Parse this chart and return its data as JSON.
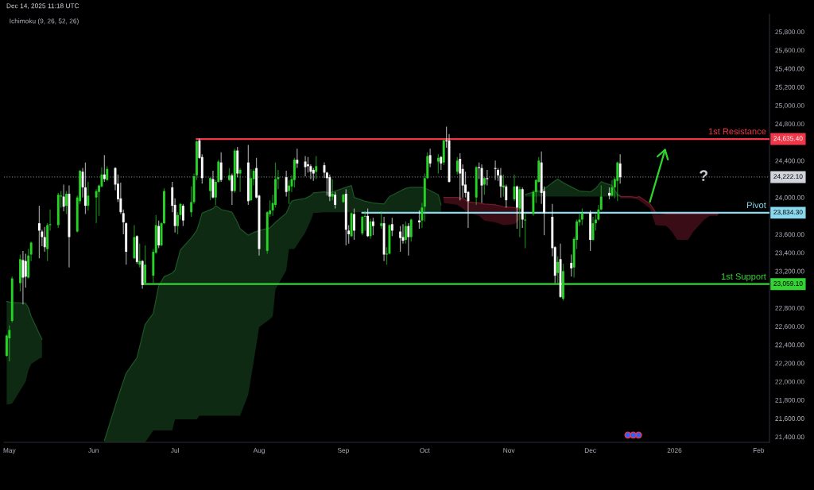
{
  "chart_data": {
    "type": "candlestick",
    "title": "Dec 14, 2025 11:18 UTC",
    "subtitle": "Ichimoku (9, 26, 52, 26)",
    "x": [
      "2025-04-30",
      "2025-05-01",
      "2025-05-02",
      "2025-05-05",
      "2025-05-06",
      "2025-05-07",
      "2025-05-08",
      "2025-05-09",
      "2025-05-12",
      "2025-05-13",
      "2025-05-14",
      "2025-05-15",
      "2025-05-16",
      "2025-05-19",
      "2025-05-20",
      "2025-05-21",
      "2025-05-22",
      "2025-05-23",
      "2025-05-26",
      "2025-05-27",
      "2025-05-28",
      "2025-05-29",
      "2025-05-30",
      "2025-06-02",
      "2025-06-03",
      "2025-06-04",
      "2025-06-05",
      "2025-06-06",
      "2025-06-09",
      "2025-06-10",
      "2025-06-11",
      "2025-06-12",
      "2025-06-13",
      "2025-06-16",
      "2025-06-17",
      "2025-06-18",
      "2025-06-19",
      "2025-06-20",
      "2025-06-23",
      "2025-06-24",
      "2025-06-25",
      "2025-06-26",
      "2025-06-27",
      "2025-06-30",
      "2025-07-01",
      "2025-07-02",
      "2025-07-03",
      "2025-07-04",
      "2025-07-07",
      "2025-07-08",
      "2025-07-09",
      "2025-07-10",
      "2025-07-11",
      "2025-07-14",
      "2025-07-15",
      "2025-07-16",
      "2025-07-17",
      "2025-07-18",
      "2025-07-21",
      "2025-07-22",
      "2025-07-23",
      "2025-07-24",
      "2025-07-25",
      "2025-07-28",
      "2025-07-29",
      "2025-07-30",
      "2025-07-31",
      "2025-08-01",
      "2025-08-04",
      "2025-08-05",
      "2025-08-06",
      "2025-08-07",
      "2025-08-08",
      "2025-08-11",
      "2025-08-12",
      "2025-08-13",
      "2025-08-14",
      "2025-08-15",
      "2025-08-18",
      "2025-08-19",
      "2025-08-20",
      "2025-08-21",
      "2025-08-22",
      "2025-08-25",
      "2025-08-26",
      "2025-08-27",
      "2025-08-28",
      "2025-08-29",
      "2025-09-01",
      "2025-09-02",
      "2025-09-03",
      "2025-09-04",
      "2025-09-05",
      "2025-09-08",
      "2025-09-09",
      "2025-09-10",
      "2025-09-11",
      "2025-09-12",
      "2025-09-15",
      "2025-09-16",
      "2025-09-17",
      "2025-09-18",
      "2025-09-19",
      "2025-09-22",
      "2025-09-23",
      "2025-09-24",
      "2025-09-25",
      "2025-09-26",
      "2025-09-29",
      "2025-09-30",
      "2025-10-01",
      "2025-10-02",
      "2025-10-03",
      "2025-10-06",
      "2025-10-07",
      "2025-10-08",
      "2025-10-09",
      "2025-10-10",
      "2025-10-13",
      "2025-10-14",
      "2025-10-15",
      "2025-10-16",
      "2025-10-17",
      "2025-10-20",
      "2025-10-21",
      "2025-10-22",
      "2025-10-23",
      "2025-10-24",
      "2025-10-27",
      "2025-10-28",
      "2025-10-29",
      "2025-10-30",
      "2025-10-31",
      "2025-11-03",
      "2025-11-04",
      "2025-11-05",
      "2025-11-06",
      "2025-11-07",
      "2025-11-10",
      "2025-11-11",
      "2025-11-12",
      "2025-11-13",
      "2025-11-14",
      "2025-11-17",
      "2025-11-18",
      "2025-11-19",
      "2025-11-20",
      "2025-11-21",
      "2025-11-24",
      "2025-11-25",
      "2025-11-26",
      "2025-11-27",
      "2025-11-28",
      "2025-12-01",
      "2025-12-02",
      "2025-12-03",
      "2025-12-04",
      "2025-12-05",
      "2025-12-08",
      "2025-12-09",
      "2025-12-10",
      "2025-12-11",
      "2025-12-12"
    ],
    "ohlc": [
      [
        22280,
        22510,
        22270,
        22500
      ],
      [
        22470,
        22610,
        22220,
        22560
      ],
      [
        22660,
        23140,
        22640,
        23120
      ],
      [
        23070,
        23380,
        22980,
        23330
      ],
      [
        23320,
        23420,
        22840,
        23130
      ],
      [
        23310,
        23390,
        23020,
        23140
      ],
      [
        23130,
        23440,
        23120,
        23370
      ],
      [
        23380,
        23520,
        23310,
        23510
      ],
      [
        23720,
        23910,
        23340,
        23640
      ],
      [
        23630,
        23650,
        23470,
        23570
      ],
      [
        23570,
        23680,
        23410,
        23460
      ],
      [
        23440,
        23720,
        23310,
        23700
      ],
      [
        23700,
        23870,
        23640,
        23710
      ],
      [
        23700,
        24050,
        23670,
        24030
      ],
      [
        24010,
        24070,
        23890,
        24020
      ],
      [
        24010,
        24140,
        23850,
        23900
      ],
      [
        23910,
        24070,
        23820,
        24040
      ],
      [
        24040,
        24130,
        23240,
        23570
      ],
      [
        23630,
        24020,
        23620,
        24000
      ],
      [
        23960,
        24300,
        23930,
        24290
      ],
      [
        24280,
        24320,
        24000,
        24110
      ],
      [
        24110,
        24380,
        23820,
        23910
      ],
      [
        23910,
        24170,
        23860,
        24020
      ],
      [
        24000,
        24090,
        23720,
        24070
      ],
      [
        24060,
        24140,
        23800,
        24130
      ],
      [
        24120,
        24330,
        24110,
        24250
      ],
      [
        24250,
        24460,
        24170,
        24200
      ],
      [
        24190,
        24340,
        24180,
        24310
      ],
      [
        24320,
        24330,
        24080,
        24140
      ],
      [
        24150,
        24250,
        23950,
        23980
      ],
      [
        23990,
        24160,
        23820,
        23840
      ],
      [
        23830,
        23870,
        23600,
        23730
      ],
      [
        23720,
        23730,
        23270,
        23410
      ],
      [
        23340,
        23700,
        23330,
        23570
      ],
      [
        23580,
        23590,
        23280,
        23300
      ],
      [
        23270,
        23500,
        23240,
        23310
      ],
      [
        23310,
        23320,
        23010,
        23050
      ],
      [
        23070,
        23480,
        23060,
        23270
      ],
      [
        23150,
        23440,
        23070,
        23410
      ],
      [
        23400,
        23810,
        23390,
        23700
      ],
      [
        23690,
        23750,
        23450,
        23480
      ],
      [
        23480,
        23730,
        23470,
        23720
      ],
      [
        23720,
        24100,
        23710,
        24070
      ],
      [
        24110,
        24170,
        23840,
        23910
      ],
      [
        23920,
        23990,
        23620,
        23690
      ],
      [
        23690,
        23840,
        23600,
        23810
      ],
      [
        23810,
        23940,
        23760,
        23930
      ],
      [
        23910,
        23930,
        23690,
        23750
      ],
      [
        23840,
        24120,
        23790,
        23950
      ],
      [
        23950,
        24260,
        23930,
        24230
      ],
      [
        24240,
        24620,
        24190,
        24610
      ],
      [
        24620,
        24640,
        24420,
        24430
      ],
      [
        24440,
        24470,
        24150,
        24210
      ],
      [
        24070,
        24220,
        23970,
        24210
      ],
      [
        24200,
        24290,
        23990,
        24000
      ],
      [
        24000,
        24190,
        23920,
        24170
      ],
      [
        24170,
        24410,
        24160,
        24390
      ],
      [
        24380,
        24490,
        24170,
        24190
      ],
      [
        24190,
        24320,
        24180,
        24240
      ],
      [
        24240,
        24260,
        23920,
        24070
      ],
      [
        24070,
        24530,
        24050,
        24510
      ],
      [
        24510,
        24550,
        24220,
        24260
      ],
      [
        24260,
        24320,
        24060,
        24300
      ],
      [
        24380,
        24570,
        23920,
        23960
      ],
      [
        23970,
        24310,
        23960,
        24210
      ],
      [
        24200,
        24310,
        24130,
        24290
      ],
      [
        24320,
        24430,
        23990,
        24000
      ],
      [
        24020,
        24030,
        23370,
        23440
      ],
      [
        23420,
        23850,
        23390,
        23840
      ],
      [
        23820,
        23970,
        23790,
        23860
      ],
      [
        23860,
        24030,
        23800,
        23940
      ],
      [
        23920,
        24380,
        23890,
        24200
      ],
      [
        24200,
        24300,
        24090,
        24220
      ],
      [
        24220,
        24290,
        24010,
        24060
      ],
      [
        24070,
        24190,
        23930,
        24130
      ],
      [
        24120,
        24240,
        24060,
        24200
      ],
      [
        24190,
        24430,
        24110,
        24410
      ],
      [
        24410,
        24530,
        24320,
        24370
      ],
      [
        24390,
        24450,
        24230,
        24330
      ],
      [
        24360,
        24440,
        24270,
        24340
      ],
      [
        24340,
        24360,
        24200,
        24280
      ],
      [
        24300,
        24320,
        24180,
        24260
      ],
      [
        24280,
        24450,
        24200,
        24340
      ],
      [
        24350,
        24380,
        24210,
        24270
      ],
      [
        24270,
        24280,
        24020,
        24210
      ],
      [
        24220,
        24250,
        23960,
        24010
      ],
      [
        24010,
        24200,
        23970,
        24040
      ],
      [
        24030,
        24060,
        23880,
        23920
      ],
      [
        23950,
        24040,
        23940,
        24030
      ],
      [
        24040,
        24090,
        23480,
        23650
      ],
      [
        23640,
        23700,
        23500,
        23600
      ],
      [
        23580,
        23840,
        23570,
        23830
      ],
      [
        23820,
        23880,
        23540,
        23640
      ],
      [
        23610,
        23800,
        23590,
        23790
      ],
      [
        23790,
        23850,
        23640,
        23800
      ],
      [
        23800,
        23880,
        23570,
        23580
      ],
      [
        23580,
        23770,
        23550,
        23740
      ],
      [
        23740,
        23780,
        23590,
        23690
      ],
      [
        23690,
        23850,
        23660,
        23720
      ],
      [
        23720,
        23790,
        23310,
        23380
      ],
      [
        23380,
        23460,
        23270,
        23390
      ],
      [
        23390,
        23710,
        23380,
        23700
      ],
      [
        23710,
        23780,
        23580,
        23640
      ],
      [
        23630,
        23690,
        23410,
        23560
      ],
      [
        23570,
        23710,
        23500,
        23530
      ],
      [
        23540,
        23740,
        23500,
        23690
      ],
      [
        23690,
        23720,
        23370,
        23570
      ],
      [
        23570,
        23770,
        23520,
        23760
      ],
      [
        23750,
        23860,
        23660,
        23730
      ],
      [
        23750,
        23940,
        23670,
        23890
      ],
      [
        23900,
        24260,
        23740,
        24210
      ],
      [
        24210,
        24490,
        24200,
        24450
      ],
      [
        24460,
        24530,
        24330,
        24370
      ],
      [
        24390,
        24470,
        24260,
        24430
      ],
      [
        24440,
        24450,
        24300,
        24370
      ],
      [
        24380,
        24630,
        24350,
        24620
      ],
      [
        24620,
        24770,
        24540,
        24610
      ],
      [
        24620,
        24690,
        24160,
        24170
      ],
      [
        24280,
        24440,
        24250,
        24400
      ],
      [
        24420,
        24480,
        23970,
        24260
      ],
      [
        24310,
        24360,
        24000,
        24130
      ],
      [
        24140,
        24280,
        24000,
        24050
      ],
      [
        24060,
        24070,
        23670,
        23960
      ],
      [
        24000,
        24340,
        23920,
        24330
      ],
      [
        24330,
        24380,
        24200,
        24320
      ],
      [
        24320,
        24360,
        23940,
        24130
      ],
      [
        24140,
        24220,
        24030,
        24210
      ],
      [
        24210,
        24300,
        24130,
        24200
      ],
      [
        24320,
        24400,
        24190,
        24310
      ],
      [
        24300,
        24320,
        24180,
        24240
      ],
      [
        24240,
        24320,
        24000,
        24120
      ],
      [
        24110,
        24250,
        24010,
        24130
      ],
      [
        24120,
        24140,
        23890,
        23970
      ],
      [
        23980,
        24250,
        23960,
        24120
      ],
      [
        24120,
        24130,
        23660,
        23890
      ],
      [
        23880,
        24120,
        23570,
        24090
      ],
      [
        24090,
        24110,
        23670,
        23760
      ],
      [
        23750,
        23830,
        23450,
        23760
      ],
      [
        23820,
        24080,
        23800,
        24060
      ],
      [
        24060,
        24200,
        23940,
        24190
      ],
      [
        24170,
        24440,
        24160,
        24400
      ],
      [
        24380,
        24500,
        23930,
        24050
      ],
      [
        24070,
        24120,
        23590,
        23830
      ],
      [
        23790,
        23930,
        23360,
        23450
      ],
      [
        23460,
        23470,
        23070,
        23150
      ],
      [
        23180,
        23360,
        23060,
        23300
      ],
      [
        23330,
        23500,
        22910,
        22920
      ],
      [
        22900,
        23280,
        22880,
        23200
      ],
      [
        23290,
        23380,
        23140,
        23230
      ],
      [
        23240,
        23570,
        23130,
        23550
      ],
      [
        23540,
        23760,
        23440,
        23740
      ],
      [
        23730,
        23830,
        23690,
        23760
      ],
      [
        23760,
        23880,
        23700,
        23830
      ],
      [
        23830,
        23860,
        23420,
        23540
      ],
      [
        23540,
        23790,
        23530,
        23720
      ],
      [
        23720,
        23820,
        23640,
        23760
      ],
      [
        23760,
        23920,
        23750,
        23870
      ],
      [
        23870,
        24130,
        23860,
        24010
      ],
      [
        24050,
        24110,
        23980,
        24020
      ],
      [
        24020,
        24190,
        24010,
        24110
      ],
      [
        24110,
        24220,
        23990,
        24200
      ],
      [
        24180,
        24390,
        23960,
        24380
      ],
      [
        24370,
        24470,
        24150,
        24220
      ]
    ],
    "colors": [
      "#26d426",
      "#26d426",
      "#26d426",
      "#26d426",
      "#ffffff",
      "#ffffff",
      "#26d426",
      "#26d426",
      "#ffffff",
      "#ffffff",
      "#ffffff",
      "#26d426",
      "#26d426",
      "#26d426",
      "#26d426",
      "#ffffff",
      "#26d426",
      "#ffffff",
      "#26d426",
      "#26d426",
      "#ffffff",
      "#ffffff",
      "#26d426",
      "#26d426",
      "#26d426",
      "#26d426",
      "#ffffff",
      "#26d426",
      "#ffffff",
      "#ffffff",
      "#ffffff",
      "#ffffff",
      "#ffffff",
      "#26d426",
      "#ffffff",
      "#26d426",
      "#ffffff",
      "#26d426",
      "#26d426",
      "#26d426",
      "#ffffff",
      "#26d426",
      "#26d426",
      "#ffffff",
      "#ffffff",
      "#26d426",
      "#26d426",
      "#ffffff",
      "#26d426",
      "#26d426",
      "#26d426",
      "#ffffff",
      "#ffffff",
      "#26d426",
      "#ffffff",
      "#26d426",
      "#26d426",
      "#ffffff",
      "#26d426",
      "#ffffff",
      "#26d426",
      "#ffffff",
      "#26d426",
      "#ffffff",
      "#26d426",
      "#26d426",
      "#ffffff",
      "#ffffff",
      "#26d426",
      "#26d426",
      "#26d426",
      "#26d426",
      "#26d426",
      "#ffffff",
      "#26d426",
      "#26d426",
      "#26d426",
      "#ffffff",
      "#ffffff",
      "#ffffff",
      "#ffffff",
      "#ffffff",
      "#26d426",
      "#ffffff",
      "#ffffff",
      "#ffffff",
      "#26d426",
      "#ffffff",
      "#26d426",
      "#ffffff",
      "#ffffff",
      "#26d426",
      "#ffffff",
      "#26d426",
      "#26d426",
      "#ffffff",
      "#26d426",
      "#ffffff",
      "#26d426",
      "#ffffff",
      "#26d426",
      "#26d426",
      "#ffffff",
      "#ffffff",
      "#ffffff",
      "#26d426",
      "#ffffff",
      "#26d426",
      "#ffffff",
      "#26d426",
      "#26d426",
      "#26d426",
      "#ffffff",
      "#26d426",
      "#ffffff",
      "#26d426",
      "#ffffff",
      "#ffffff",
      "#26d426",
      "#ffffff",
      "#ffffff",
      "#ffffff",
      "#ffffff",
      "#26d426",
      "#ffffff",
      "#ffffff",
      "#26d426",
      "#ffffff",
      "#ffffff",
      "#ffffff",
      "#ffffff",
      "#26d426",
      "#ffffff",
      "#26d426",
      "#ffffff",
      "#26d426",
      "#ffffff",
      "#26d426",
      "#26d426",
      "#26d426",
      "#26d426",
      "#ffffff",
      "#ffffff",
      "#ffffff",
      "#ffffff",
      "#26d426",
      "#ffffff",
      "#26d426",
      "#ffffff",
      "#26d426",
      "#26d426",
      "#26d426",
      "#26d426",
      "#ffffff",
      "#26d426",
      "#26d426",
      "#26d426",
      "#26d426",
      "#ffffff",
      "#26d426",
      "#26d426",
      "#26d426",
      "#ffffff"
    ],
    "series": [
      {
        "type": "line",
        "color": "#1c5424",
        "x": [
          "2025-04-30",
          "2025-05-02",
          "2025-05-07",
          "2025-05-08",
          "2025-05-09",
          "2025-05-12",
          "2025-05-13"
        ],
        "values": [
          22870,
          22860,
          22850,
          22800,
          22710,
          22520,
          22460
        ],
        "upper": [
          22870,
          22860,
          22850,
          22800,
          22710,
          22520,
          22460
        ],
        "lower": [
          21750,
          21760,
          22000,
          22120,
          22190,
          22250,
          22260
        ]
      },
      {
        "type": "line",
        "color": "#1c5424",
        "x": [
          "2025-06-05",
          "2025-06-10",
          "2025-06-13",
          "2025-06-17",
          "2025-06-19",
          "2025-06-20",
          "2025-06-23",
          "2025-06-25",
          "2025-06-27",
          "2025-06-30",
          "2025-07-01",
          "2025-07-02",
          "2025-07-03",
          "2025-07-07",
          "2025-07-09",
          "2025-07-10",
          "2025-07-11",
          "2025-07-15",
          "2025-07-16",
          "2025-07-18",
          "2025-07-22",
          "2025-07-24",
          "2025-07-25",
          "2025-07-28",
          "2025-07-30",
          "2025-08-01",
          "2025-08-05",
          "2025-08-06",
          "2025-08-07",
          "2025-08-11",
          "2025-08-12",
          "2025-08-13",
          "2025-08-14",
          "2025-08-18",
          "2025-08-20",
          "2025-08-21",
          "2025-08-25",
          "2025-08-27",
          "2025-08-29",
          "2025-09-02",
          "2025-09-04",
          "2025-09-05",
          "2025-09-09",
          "2025-09-12",
          "2025-09-16",
          "2025-09-18",
          "2025-09-22",
          "2025-09-24",
          "2025-09-26",
          "2025-09-30",
          "2025-10-02",
          "2025-10-06",
          "2025-10-07"
        ],
        "values": [
          21360,
          21830,
          22090,
          22260,
          22500,
          22620,
          22740,
          23040,
          23140,
          23180,
          23210,
          23320,
          23430,
          23560,
          23640,
          23730,
          23830,
          23880,
          23910,
          23870,
          23840,
          23730,
          23660,
          23590,
          23620,
          23640,
          23670,
          23700,
          23730,
          23830,
          23900,
          23960,
          23970,
          23990,
          24020,
          24050,
          24060,
          24050,
          24070,
          24110,
          24130,
          24000,
          23960,
          23940,
          23930,
          24010,
          24070,
          24100,
          24110,
          24110,
          24090,
          24030,
          23920
        ],
        "upper": [
          21360,
          21830,
          22090,
          22260,
          22500,
          22620,
          22740,
          23040,
          23140,
          23180,
          23210,
          23320,
          23430,
          23560,
          23640,
          23730,
          23830,
          23880,
          23910,
          23870,
          23840,
          23730,
          23660,
          23590,
          23620,
          23640,
          23670,
          23700,
          23730,
          23830,
          23900,
          23960,
          23970,
          23990,
          24020,
          24050,
          24060,
          24050,
          24070,
          24110,
          24130,
          24000,
          23960,
          23940,
          23930,
          24010,
          24070,
          24100,
          24110,
          24110,
          24090,
          24030,
          23920
        ],
        "lower": [
          21340,
          21340,
          21340,
          21340,
          21340,
          21340,
          21470,
          21470,
          21470,
          21470,
          21590,
          21590,
          21590,
          21590,
          21590,
          21630,
          21630,
          21630,
          21630,
          21630,
          21630,
          21630,
          21630,
          21860,
          22220,
          22590,
          22680,
          22710,
          23000,
          23210,
          23440,
          23440,
          23440,
          23620,
          23750,
          23830,
          23840,
          23840,
          23840,
          23840,
          23840,
          23840,
          23840,
          23840,
          23840,
          23840,
          23840,
          23840,
          23840,
          23840,
          23840,
          23840,
          23840
        ]
      },
      {
        "type": "line",
        "color": "#74182a",
        "x": [
          "2025-10-08",
          "2025-10-13",
          "2025-10-15",
          "2025-10-17",
          "2025-10-21",
          "2025-10-23",
          "2025-10-27",
          "2025-10-30",
          "2025-11-03",
          "2025-11-05"
        ],
        "values": [
          24000,
          24000,
          23990,
          23950,
          23940,
          23930,
          23920,
          23900,
          23890,
          23870
        ],
        "upper": [
          24000,
          24000,
          23990,
          23950,
          23940,
          23930,
          23920,
          23900,
          23890,
          23870
        ],
        "lower": [
          23940,
          23920,
          23880,
          23830,
          23800,
          23750,
          23730,
          23700,
          23710,
          23760
        ]
      },
      {
        "type": "line",
        "color": "#1c5424",
        "x": [
          "2025-11-07",
          "2025-11-11",
          "2025-11-13",
          "2025-11-17",
          "2025-11-19",
          "2025-11-21",
          "2025-11-25",
          "2025-11-27",
          "2025-12-01",
          "2025-12-03",
          "2025-12-05",
          "2025-12-09",
          "2025-12-11",
          "2025-12-12"
        ],
        "values": [
          24030,
          24070,
          24070,
          24160,
          24200,
          24160,
          24100,
          24070,
          24060,
          24100,
          24170,
          24130,
          24030,
          24020
        ],
        "upper": [
          24030,
          24070,
          24070,
          24160,
          24200,
          24160,
          24100,
          24070,
          24060,
          24100,
          24170,
          24130,
          24030,
          24020
        ],
        "lower": [
          24010,
          24010,
          24010,
          24010,
          24010,
          24010,
          24010,
          24010,
          24010,
          24010,
          24010,
          24010,
          24010,
          24010
        ]
      },
      {
        "type": "line",
        "color": "#74182a",
        "x": [
          "2025-12-12",
          "2025-12-16",
          "2025-12-18",
          "2025-12-19",
          "2025-12-23",
          "2025-12-25",
          "2025-12-29",
          "2025-12-31",
          "2026-01-02",
          "2026-01-06",
          "2026-01-08",
          "2026-01-12",
          "2026-01-14",
          "2026-01-17"
        ],
        "values": [
          24010,
          24010,
          24000,
          24010,
          23930,
          23840,
          23820,
          23820,
          23820,
          23820,
          23820,
          23820,
          23820,
          23820
        ],
        "upper": [
          24010,
          24010,
          24000,
          24010,
          23930,
          23840,
          23820,
          23820,
          23820,
          23820,
          23820,
          23820,
          23820,
          23820
        ],
        "lower": [
          23990,
          23990,
          23980,
          23970,
          23880,
          23700,
          23690,
          23630,
          23540,
          23540,
          23630,
          23760,
          23800,
          23800
        ]
      },
      {
        "type": "line",
        "name": "1st Resistance",
        "color": "#f0374a",
        "x": [
          "2025-07-09",
          "2026-02-05"
        ],
        "values": [
          24635.4,
          24635.4
        ],
        "value_labels": [
          null,
          "24,635.40"
        ]
      },
      {
        "type": "line",
        "name": "Pivot",
        "color": "#8ad9ee",
        "x": [
          "2025-09-08",
          "2026-02-05"
        ],
        "values": [
          23834.3,
          23834.3
        ],
        "value_labels": [
          null,
          "23,834.30"
        ]
      },
      {
        "type": "line",
        "name": "1st Support",
        "color": "#35d435",
        "x": [
          "2025-06-19",
          "2026-02-05"
        ],
        "values": [
          23059.1,
          23059.1
        ],
        "value_labels": [
          null,
          "23,059.10"
        ]
      }
    ],
    "ref_lines": [
      {
        "axis": "y",
        "value": 24222.1,
        "label": "24,222.10",
        "color": "#d1d4dc",
        "line_style": "dotted"
      }
    ],
    "annotations": [
      "?"
    ],
    "xlim": [
      "2025-04-29",
      "2026-02-05"
    ],
    "xticks": [
      {
        "value": "2025-05-01",
        "label": "May"
      },
      {
        "value": "2025-06-01",
        "label": "Jun"
      },
      {
        "value": "2025-07-01",
        "label": "Jul"
      },
      {
        "value": "2025-08-01",
        "label": "Aug"
      },
      {
        "value": "2025-09-01",
        "label": "Sep"
      },
      {
        "value": "2025-10-01",
        "label": "Oct"
      },
      {
        "value": "2025-11-01",
        "label": "Nov"
      },
      {
        "value": "2025-12-01",
        "label": "Dec"
      },
      {
        "value": "2026-01-01",
        "label": "2026"
      },
      {
        "value": "2026-02-01",
        "label": "Feb"
      }
    ],
    "ylim": [
      21340,
      25990
    ],
    "yticks": [
      {
        "value": 21400,
        "label": "21,400.00"
      },
      {
        "value": 21600,
        "label": "21,600.00"
      },
      {
        "value": 21800,
        "label": "21,800.00"
      },
      {
        "value": 22000,
        "label": "22,000.00"
      },
      {
        "value": 22200,
        "label": "22,200.00"
      },
      {
        "value": 22400,
        "label": "22,400.00"
      },
      {
        "value": 22600,
        "label": "22,600.00"
      },
      {
        "value": 22800,
        "label": "22,800.00"
      },
      {
        "value": 23200,
        "label": "23,200.00"
      },
      {
        "value": 23400,
        "label": "23,400.00"
      },
      {
        "value": 23600,
        "label": "23,600.00"
      },
      {
        "value": 24000,
        "label": "24,000.00"
      },
      {
        "value": 24400,
        "label": "24,400.00"
      },
      {
        "value": 24800,
        "label": "24,800.00"
      },
      {
        "value": 25000,
        "label": "25,000.00"
      },
      {
        "value": 25200,
        "label": "25,200.00"
      },
      {
        "value": 25400,
        "label": "25,400.00"
      },
      {
        "value": 25600,
        "label": "25,600.00"
      },
      {
        "value": 25800,
        "label": "25,800.00"
      }
    ]
  }
}
